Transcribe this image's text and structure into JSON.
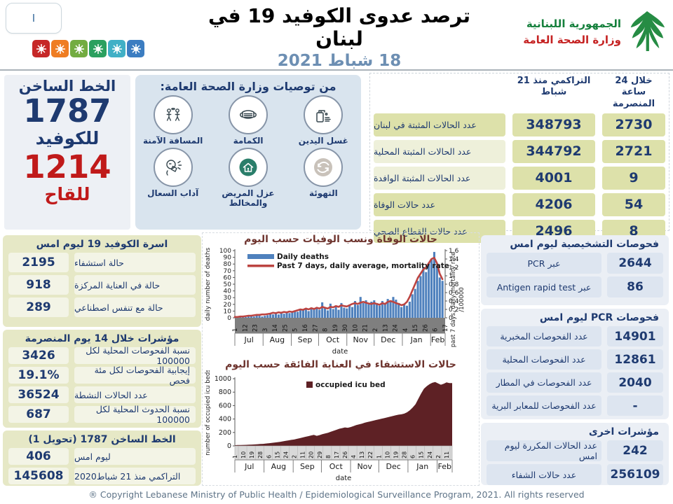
{
  "header": {
    "nav_button": "I",
    "title": "ترصد عدوى الكوفيد 19 في لبنان",
    "date": "18 شباط 2021",
    "ministry_line1": "الجمهورية اللبنانية",
    "ministry_line2": "وزارة الصحة العامة",
    "virus_icon_colors": [
      "#c62828",
      "#ef7d22",
      "#73ac41",
      "#2ba05f",
      "#41b0c6",
      "#3c7dc1"
    ]
  },
  "colors": {
    "navy": "#1e3a70",
    "red": "#c01a1a",
    "khaki_panel": "#e6e8c6",
    "khaki_cell": "#dde1aa",
    "blue_panel": "#ebeff5",
    "blue_cell": "#dde5f0",
    "chart_title": "#6e342e"
  },
  "hotline_panel": {
    "title": "الخط الساخن",
    "covid_number": "1787",
    "covid_label": "للكوفيد",
    "vaccine_number": "1214",
    "vaccine_label": "للقاح"
  },
  "recommendations": {
    "title": "من توصيات وزارة الصحة العامة:",
    "items": [
      {
        "label": "غسل اليدين",
        "icon": "hand-sanitizer-icon"
      },
      {
        "label": "الكمامة",
        "icon": "mask-icon"
      },
      {
        "label": "المسافة الآمنة",
        "icon": "distance-icon"
      },
      {
        "label": "التهوئة",
        "icon": "ventilation-icon"
      },
      {
        "label": "عزل المريض والمخالط",
        "icon": "isolation-icon"
      },
      {
        "label": "آداب السعال",
        "icon": "cough-etiquette-icon"
      }
    ]
  },
  "summary_table": {
    "col_24h": "خلال 24 ساعة المنصرمة",
    "col_cum": "التراكمي منذ 21 شباط",
    "rows": [
      {
        "label": "عدد الحالات المثبتة في لبنان",
        "cumulative": "348793",
        "last24h": "2730"
      },
      {
        "label": "عدد الحالات المثبتة المحلية",
        "cumulative": "344792",
        "last24h": "2721"
      },
      {
        "label": "عدد الحالات المثبتة الوافدة",
        "cumulative": "4001",
        "last24h": "9"
      },
      {
        "label": "عدد حالات الوفاة",
        "cumulative": "4206",
        "last24h": "54"
      },
      {
        "label": "عدد حالات القطاع الصحي",
        "cumulative": "2496",
        "last24h": "8"
      }
    ]
  },
  "beds_panel": {
    "title": "اسرة الكوفيد 19 ليوم امس",
    "rows": [
      [
        "2195",
        "حالة استشفاء"
      ],
      [
        "918",
        "حالة في العناية المركزة"
      ],
      [
        "289",
        "حالة مع تنفس اصطناعي"
      ]
    ]
  },
  "indicators14_panel": {
    "title": "مؤشرات خلال 14 يوم المنصرمة",
    "rows": [
      [
        "3426",
        "نسبة الفحوصات  المحلية لكل 100000"
      ],
      [
        "19.1%",
        "إيجابية الفحوصات لكل مئة فحص"
      ],
      [
        "36524",
        "عدد الحالات النشطة"
      ],
      [
        "687",
        "نسبة الحدوث المحلية لكل 100000"
      ]
    ]
  },
  "hotline1787_panel": {
    "title": "الخط الساخن 1787 (تحويل 1)",
    "rows": [
      [
        "406",
        "ليوم امس"
      ],
      [
        "145608",
        "التراكمي منذ 21 شباط2020"
      ]
    ]
  },
  "tests_panel": {
    "title": "فحوصات التشخيصية ليوم امس",
    "rows": [
      [
        "2644",
        "عبر PCR"
      ],
      [
        "86",
        "عبر Antigen rapid test"
      ]
    ]
  },
  "pcr_panel": {
    "title": "فحوصات PCR ليوم امس",
    "rows": [
      [
        "14901",
        "عدد الفحوصات المخبرية"
      ],
      [
        "12861",
        "عدد الفحوصات المحلية"
      ],
      [
        "2040",
        "عدد الفحوصات في المطار"
      ],
      [
        "-",
        "عدد الفحوصات للمعابر البرية"
      ]
    ]
  },
  "other_panel": {
    "title": "مؤشرات اخرى",
    "rows": [
      [
        "242",
        "عدد الحالات المكررة  ليوم امس"
      ],
      [
        "256109",
        "عدد حالات الشفاء"
      ]
    ]
  },
  "chart_data": [
    {
      "type": "bar",
      "title": "حالات الوفاة ونسب الوفيات حسب اليوم",
      "legend": [
        "Daily deaths",
        "Past 7 days, daily average, mortality rate"
      ],
      "ylabel_left": "daily number of deaths",
      "ylabel_right": "past 7 days, daily mortality rate",
      "ylabel_right2": "/100000",
      "xlabel": "date",
      "ylim_left": [
        0,
        100
      ],
      "ytick_step_left": 10,
      "ylim_right": [
        0,
        1.6
      ],
      "ytick_step_right": 0.2,
      "bar_color": "#4f81bd",
      "line_color": "#bc4441",
      "x_ticks": [
        "1",
        "12",
        "23",
        "3",
        "14",
        "25",
        "5",
        "16",
        "27",
        "8",
        "19",
        "30",
        "10",
        "21",
        "2",
        "13",
        "24",
        "4",
        "15",
        "26",
        "6",
        "17"
      ],
      "x_tick_day_step": 11,
      "months": [
        "Jul",
        "Aug",
        "Sep",
        "Oct",
        "Nov",
        "Dec",
        "Jan",
        "Feb"
      ],
      "months_days": [
        31,
        31,
        30,
        31,
        30,
        31,
        31,
        17
      ],
      "sample_day_step": 3,
      "bars": [
        0,
        1,
        1,
        2,
        1,
        2,
        3,
        2,
        4,
        3,
        2,
        3,
        4,
        6,
        5,
        7,
        5,
        8,
        6,
        9,
        7,
        8,
        10,
        9,
        12,
        11,
        13,
        10,
        14,
        12,
        15,
        12,
        23,
        14,
        11,
        21,
        13,
        16,
        12,
        22,
        15,
        14,
        18,
        16,
        25,
        19,
        31,
        22,
        26,
        20,
        24,
        26,
        22,
        18,
        25,
        20,
        28,
        24,
        31,
        27,
        22,
        16,
        20,
        18,
        24,
        35,
        43,
        55,
        62,
        75,
        68,
        82,
        88,
        98,
        78,
        60,
        55
      ],
      "line": [
        0.02,
        0.02,
        0.03,
        0.03,
        0.04,
        0.05,
        0.05,
        0.06,
        0.07,
        0.07,
        0.08,
        0.08,
        0.09,
        0.1,
        0.12,
        0.11,
        0.13,
        0.12,
        0.14,
        0.13,
        0.15,
        0.14,
        0.16,
        0.18,
        0.2,
        0.19,
        0.22,
        0.2,
        0.23,
        0.21,
        0.24,
        0.22,
        0.26,
        0.24,
        0.22,
        0.26,
        0.25,
        0.28,
        0.26,
        0.3,
        0.28,
        0.27,
        0.3,
        0.33,
        0.35,
        0.33,
        0.36,
        0.38,
        0.36,
        0.34,
        0.33,
        0.35,
        0.33,
        0.31,
        0.35,
        0.33,
        0.38,
        0.4,
        0.38,
        0.35,
        0.33,
        0.3,
        0.32,
        0.38,
        0.5,
        0.65,
        0.8,
        0.95,
        1.05,
        1.15,
        1.2,
        1.3,
        1.4,
        1.43,
        1.3,
        1.05,
        0.92
      ]
    },
    {
      "type": "area",
      "title": "حالات الاستشفاء في العناية الفائقة حسب اليوم",
      "legend": [
        "occupied icu bed"
      ],
      "ylabel_left": "number of occupied icu beds",
      "xlabel": "date",
      "ylim": [
        0,
        1000
      ],
      "ytick_step": 200,
      "area_color": "#5e2125",
      "x_ticks": [
        "1",
        "10",
        "19",
        "28",
        "6",
        "15",
        "24",
        "2",
        "11",
        "20",
        "29",
        "8",
        "17",
        "26",
        "4",
        "13",
        "22",
        "1",
        "10",
        "19",
        "28",
        "6",
        "15",
        "24",
        "2",
        "11"
      ],
      "x_tick_day_step": 9,
      "months": [
        "Jul",
        "Aug",
        "Sep",
        "Oct",
        "Nov",
        "Dec",
        "Jan",
        "Feb"
      ],
      "months_days": [
        31,
        31,
        30,
        31,
        30,
        31,
        31,
        17
      ],
      "sample_day_step": 3,
      "values": [
        10,
        12,
        13,
        15,
        16,
        18,
        20,
        22,
        25,
        28,
        30,
        35,
        40,
        45,
        50,
        55,
        60,
        68,
        75,
        82,
        90,
        95,
        105,
        115,
        125,
        135,
        145,
        155,
        165,
        150,
        160,
        175,
        185,
        195,
        210,
        225,
        240,
        255,
        265,
        275,
        270,
        280,
        295,
        310,
        320,
        330,
        345,
        355,
        365,
        375,
        385,
        395,
        405,
        415,
        425,
        435,
        445,
        455,
        465,
        470,
        480,
        500,
        530,
        570,
        620,
        700,
        780,
        850,
        890,
        920,
        940,
        950,
        930,
        910,
        925,
        945,
        935
      ]
    }
  ],
  "footer": {
    "copyright": "® Copyright Lebanese Ministry of Public Health / Epidemiological Surveillance Program, 2021. All rights reserved"
  }
}
